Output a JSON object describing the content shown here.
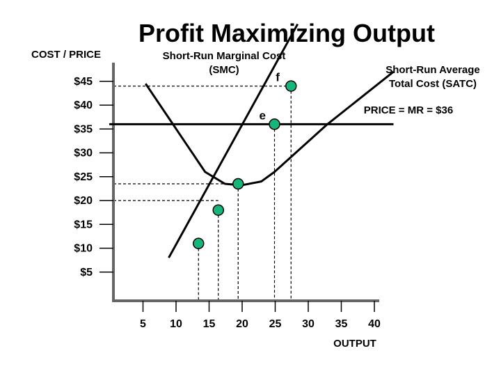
{
  "chart_data": {
    "type": "line",
    "title": "Profit Maximizing Output",
    "ylabel": "COST / PRICE",
    "xlabel": "OUTPUT",
    "xlim": [
      0,
      40
    ],
    "ylim": [
      0,
      47
    ],
    "x_ticks": [
      5,
      10,
      15,
      20,
      25,
      30,
      35,
      40
    ],
    "x_tick_labels": [
      "5",
      "10",
      "15",
      "20",
      "25",
      "30",
      "35",
      "40"
    ],
    "y_ticks": [
      5,
      10,
      15,
      20,
      25,
      30,
      35,
      40,
      45
    ],
    "y_tick_labels": [
      "$5",
      "$10",
      "$15",
      "$20",
      "$25",
      "$30",
      "$35",
      "$40",
      "$45"
    ],
    "series": [
      {
        "name": "Short-Run Marginal Cost (SMC)",
        "label_lines": [
          "Short-Run Marginal Cost",
          "(SMC)"
        ],
        "x": [
          9,
          28.5
        ],
        "y": [
          8,
          57
        ]
      },
      {
        "name": "Short-Run Average Total Cost (SATC)",
        "label_lines": [
          "Short-Run Average",
          "Total Cost (SATC)"
        ],
        "x": [
          5.5,
          14.5,
          17.5,
          20,
          23,
          25,
          33,
          43
        ],
        "y": [
          44.5,
          26,
          23.5,
          23.2,
          24,
          26,
          36,
          47
        ]
      },
      {
        "name": "PRICE = MR = $36",
        "label_lines": [
          "PRICE = MR = $36"
        ],
        "x": [
          0,
          43
        ],
        "y": [
          36,
          36
        ]
      }
    ],
    "points": [
      {
        "label": "",
        "x": 13.5,
        "y": 11
      },
      {
        "label": "",
        "x": 16.5,
        "y": 18
      },
      {
        "label": "",
        "x": 19.5,
        "y": 23.5
      },
      {
        "label": "e",
        "x": 25,
        "y": 36
      },
      {
        "label": "f",
        "x": 27.5,
        "y": 44
      }
    ],
    "colors": {
      "point_fill": "#16b57a",
      "line": "#000000",
      "axis": "#666666"
    }
  }
}
